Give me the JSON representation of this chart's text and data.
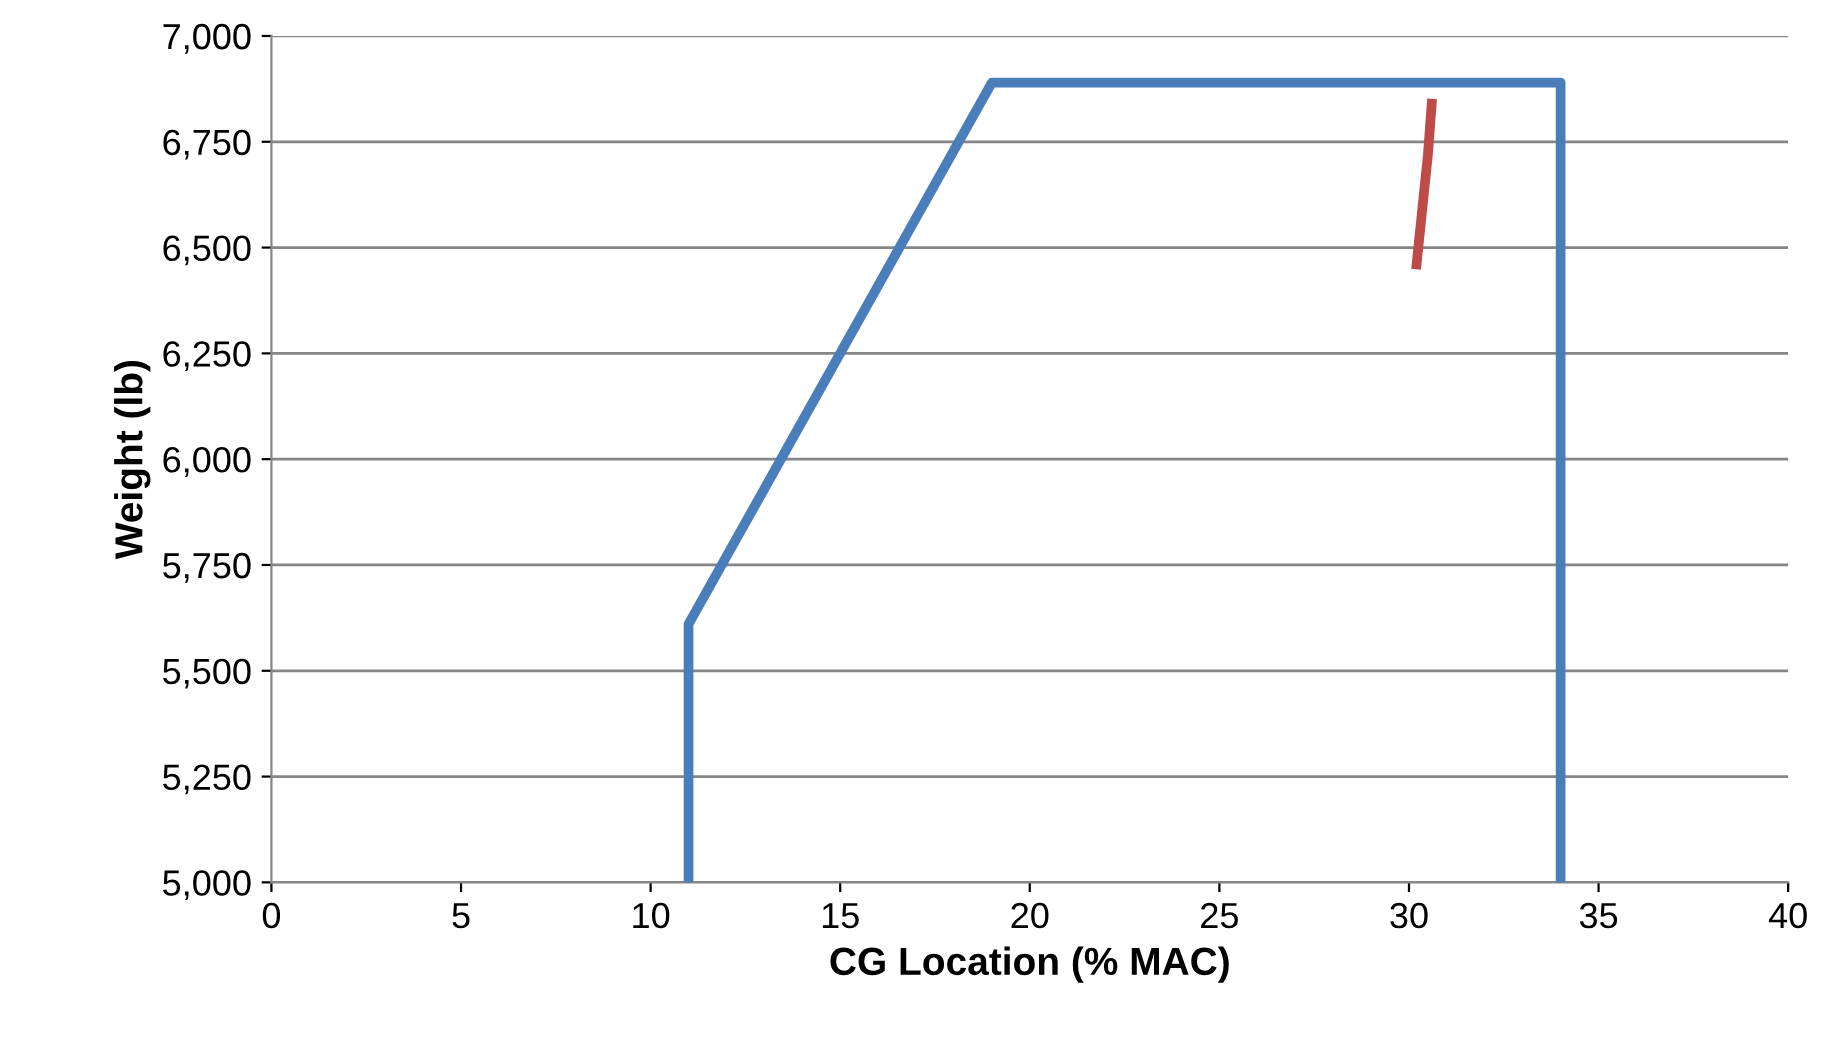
{
  "chart_data": {
    "type": "line",
    "xlabel": "CG Location (% MAC)",
    "ylabel": "Weight (lb)",
    "series": [
      {
        "color": "#4a7ebb",
        "x": [
          11,
          11,
          19,
          34,
          34
        ],
        "values": [
          5000,
          5610,
          6890,
          6890,
          5000
        ]
      },
      {
        "color": "#be4b48",
        "x": [
          30.2,
          30.5,
          30.6
        ],
        "values": [
          6460,
          6720,
          6840
        ]
      }
    ],
    "xlim": [
      0,
      40
    ],
    "xticks": [
      0,
      5,
      10,
      15,
      20,
      25,
      30,
      35,
      40
    ],
    "ylim": [
      5000,
      7000
    ],
    "yticks": [
      {
        "value": 5000,
        "label": "5,000"
      },
      {
        "value": 5250,
        "label": "5,250"
      },
      {
        "value": 5500,
        "label": "5,500"
      },
      {
        "value": 5750,
        "label": "5,750"
      },
      {
        "value": 6000,
        "label": "6,000"
      },
      {
        "value": 6250,
        "label": "6,250"
      },
      {
        "value": 6500,
        "label": "6,500"
      },
      {
        "value": 6750,
        "label": "6,750"
      },
      {
        "value": 7000,
        "label": "7,000"
      }
    ],
    "grid": "y",
    "marker": "none",
    "line_style": "solid"
  }
}
